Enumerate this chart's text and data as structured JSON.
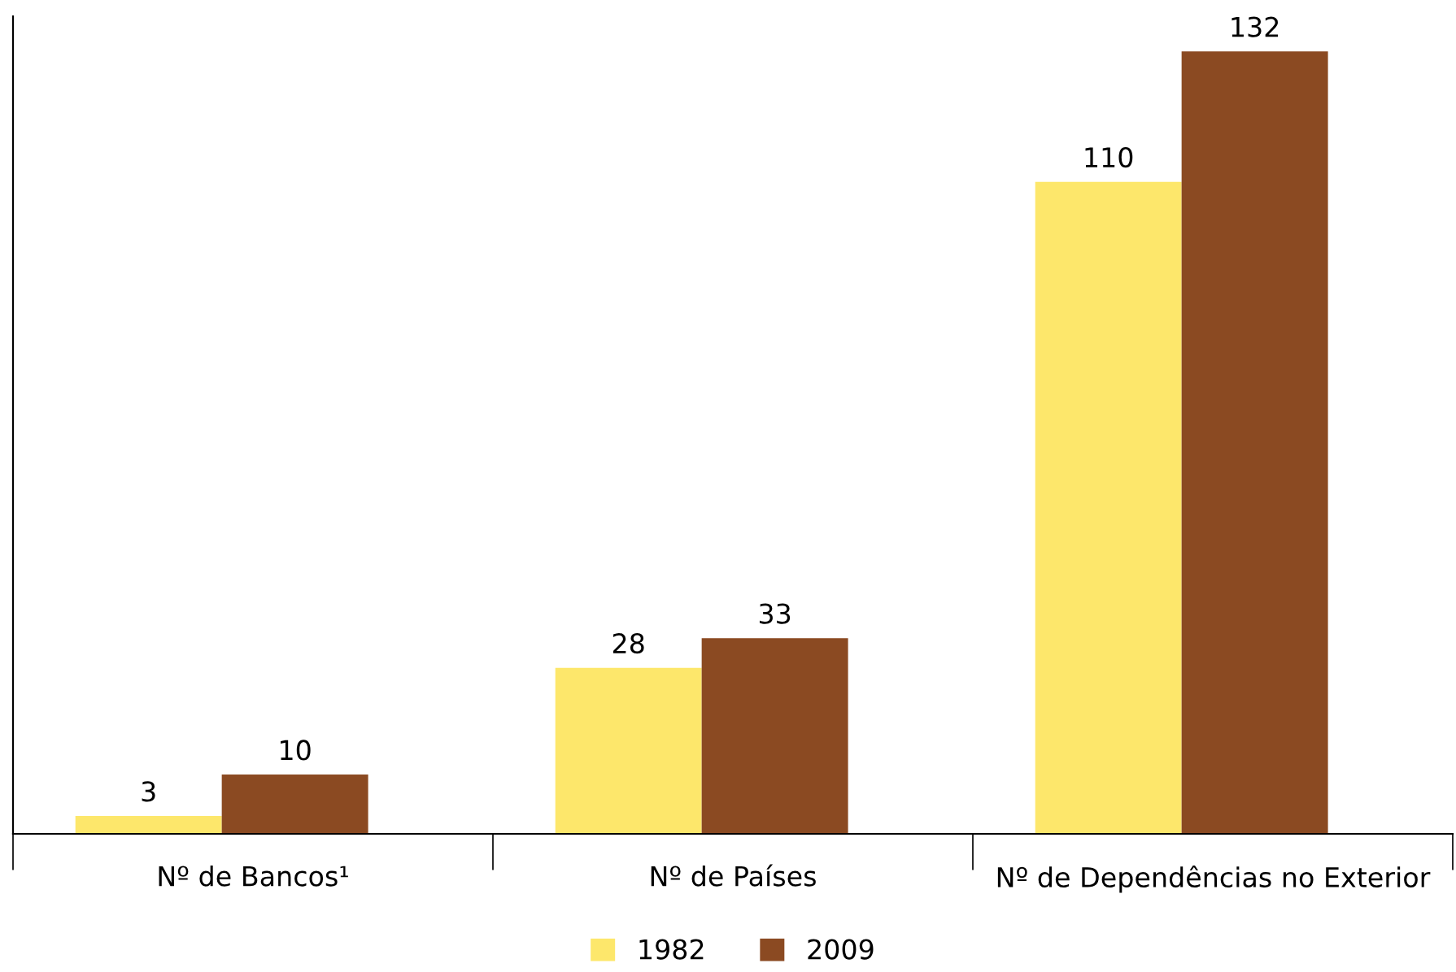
{
  "chart_data": {
    "type": "bar",
    "categories": [
      "Nº de Bancos¹",
      "Nº de Países",
      "Nº de Dependências no Exterior"
    ],
    "series": [
      {
        "name": "1982",
        "color": "#fde76b",
        "values": [
          3,
          28,
          110
        ]
      },
      {
        "name": "2009",
        "color": "#8b4a22",
        "values": [
          10,
          33,
          132
        ]
      }
    ],
    "data_labels": true,
    "legend": "bottom",
    "grid": false
  }
}
